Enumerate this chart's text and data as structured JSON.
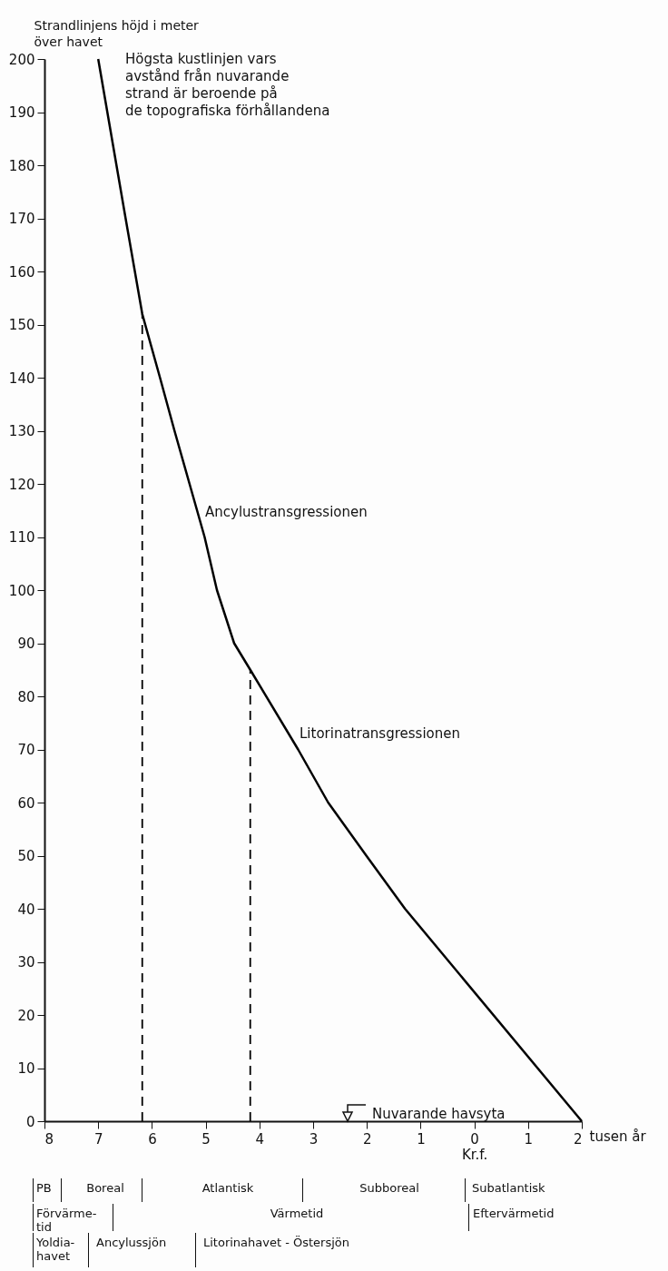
{
  "chart_data": {
    "type": "line",
    "ylabel": "Strandlinjens höjd i meter\növer havet",
    "xlabel": "tusen år",
    "xlim": [
      -8,
      2
    ],
    "xticks": [
      {
        "value": -8,
        "label": "8"
      },
      {
        "value": -7,
        "label": "7"
      },
      {
        "value": -6,
        "label": "6"
      },
      {
        "value": -5,
        "label": "5"
      },
      {
        "value": -4,
        "label": "4"
      },
      {
        "value": -3,
        "label": "3"
      },
      {
        "value": -2,
        "label": "2"
      },
      {
        "value": -1,
        "label": "1"
      },
      {
        "value": 0,
        "label": "0\nKr.f."
      },
      1,
      2
    ],
    "ylim": [
      0,
      200
    ],
    "yticks": [
      0,
      10,
      20,
      30,
      40,
      50,
      60,
      70,
      80,
      90,
      100,
      110,
      120,
      130,
      140,
      150,
      160,
      170,
      180,
      190,
      200
    ],
    "grid": false,
    "series": [
      {
        "color": "#000000",
        "line_style": "solid",
        "x": [
          -7.0,
          -6.49,
          -6.18,
          -5.85,
          -5.58,
          -5.3,
          -5.02,
          -4.79,
          -4.47,
          -4.17,
          -3.28,
          -2.72,
          -2.01,
          -1.29,
          2.0
        ],
        "values": [
          200,
          170,
          152,
          140,
          130,
          120,
          110,
          100,
          90,
          85,
          70,
          60,
          50,
          40,
          0
        ]
      },
      {
        "color": "#000000",
        "line_style": "dashed",
        "x": [
          -6.18,
          -6.18
        ],
        "values": [
          0,
          152
        ]
      },
      {
        "color": "#000000",
        "line_style": "dashed",
        "x": [
          -4.17,
          -4.17
        ],
        "values": [
          0,
          85
        ]
      }
    ],
    "annotations": [
      "Högsta kustlinjen vars\navstånd från nuvarande\nstrand är beroende på\nde topografiska förhållandena",
      "Ancylustransgressionen",
      "Litorinatransgressionen",
      "Nuvarande havsyta",
      "PB",
      "Boreal",
      "Atlantisk",
      "Subboreal",
      "Subatlantisk",
      "Förvärme-\ntid",
      "Värmetid",
      "Eftervärmetid",
      "Yoldia-\nhavet",
      "Ancylussjön",
      "Litorinahavet - Östersjön"
    ]
  }
}
